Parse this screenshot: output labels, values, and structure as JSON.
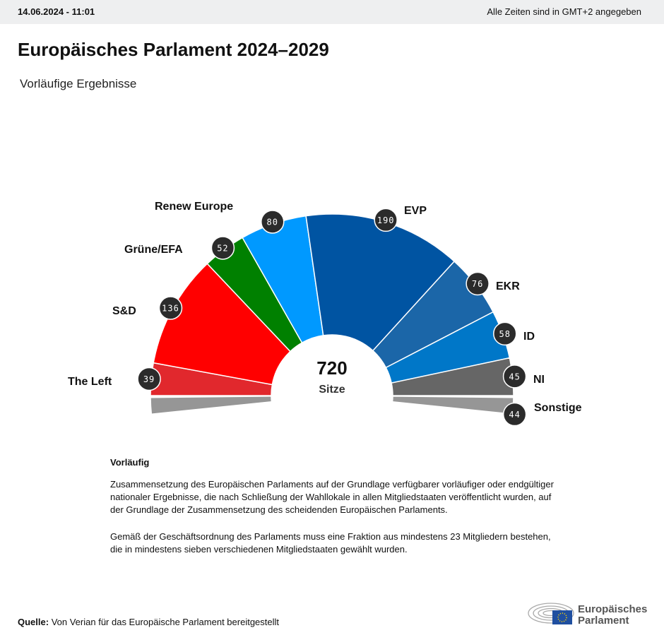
{
  "header": {
    "timestamp": "14.06.2024 - 11:01",
    "timezone_note": "Alle Zeiten sind in GMT+2 angegeben"
  },
  "title": "Europäisches Parlament 2024–2029",
  "subtitle": "Vorläufige Ergebnisse",
  "chart_data": {
    "type": "pie",
    "style": "hemicycle",
    "total": "720",
    "total_label": "Sitze",
    "series": [
      {
        "name": "The Left",
        "value": 39,
        "color": "#e1282d"
      },
      {
        "name": "S&D",
        "value": 136,
        "color": "#ff0000"
      },
      {
        "name": "Grüne/EFA",
        "value": 52,
        "color": "#008000"
      },
      {
        "name": "Renew Europe",
        "value": 80,
        "color": "#0099ff"
      },
      {
        "name": "EVP",
        "value": 190,
        "color": "#0054a2"
      },
      {
        "name": "EKR",
        "value": 76,
        "color": "#1b66a8"
      },
      {
        "name": "ID",
        "value": 58,
        "color": "#0077c8"
      },
      {
        "name": "NI",
        "value": 45,
        "color": "#666666"
      },
      {
        "name": "Sonstige",
        "value": 44,
        "color": "#969696"
      }
    ]
  },
  "notes": {
    "heading": "Vorläufig",
    "p1": "Zusammensetzung des Europäischen Parlaments auf der Grundlage verfügbarer vorläufiger oder endgültiger nationaler Ergebnisse, die nach Schließung der Wahllokale in allen Mitgliedstaaten veröffentlicht wurden, auf der Grundlage der Zusammensetzung des scheidenden Europäischen Parlaments.",
    "p2": "Gemäß der Geschäftsordnung des Parlaments muss eine Fraktion aus mindestens 23 Mitgliedern bestehen, die in mindestens sieben verschiedenen Mitgliedstaaten gewählt wurden."
  },
  "source": {
    "label": "Quelle:",
    "text": "Von Verian für das Europäische Parlament bereitgestellt"
  },
  "logo": {
    "line1": "Europäisches",
    "line2": "Parlament"
  }
}
